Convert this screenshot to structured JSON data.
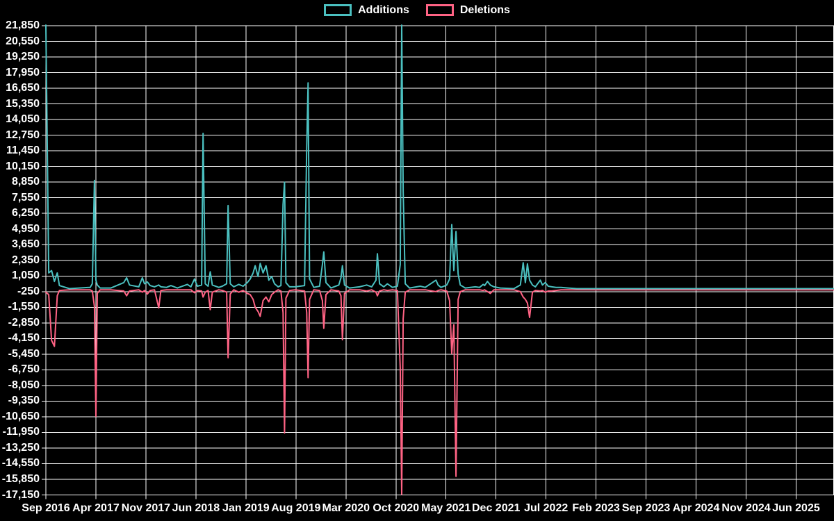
{
  "legend": {
    "items": [
      {
        "label": "Additions",
        "color": "#4bc0c0"
      },
      {
        "label": "Deletions",
        "color": "#ff6384"
      }
    ]
  },
  "colors": {
    "background": "#000000",
    "grid": "#ffffff",
    "text": "#ffffff",
    "additions": "#4bc0c0",
    "deletions": "#ff6384"
  },
  "chart_data": {
    "type": "line",
    "title": "",
    "legend_position": "top",
    "grid": true,
    "x_axis": {
      "unit": "months since Sep 2016",
      "span_months": 110.3,
      "tick_interval_months": 7,
      "tick_labels": [
        "Sep 2016",
        "Apr 2017",
        "Nov 2017",
        "Jun 2018",
        "Jan 2019",
        "Aug 2019",
        "Mar 2020",
        "Oct 2020",
        "May 2021",
        "Dec 2021",
        "Jul 2022",
        "Feb 2023",
        "Sep 2023",
        "Apr 2024",
        "Nov 2024",
        "Jun 2025"
      ]
    },
    "y_axis": {
      "min": -17150,
      "max": 21850,
      "tick_step": 1300,
      "tick_labels": [
        "21,850",
        "20,550",
        "19,250",
        "17,950",
        "16,650",
        "15,350",
        "14,050",
        "12,750",
        "11,450",
        "10,150",
        "8,850",
        "7,550",
        "6,250",
        "4,950",
        "3,650",
        "2,350",
        "1,050",
        "-250",
        "-1,550",
        "-2,850",
        "-4,150",
        "-5,450",
        "-6,750",
        "-8,050",
        "-9,350",
        "-10,650",
        "-11,950",
        "-13,250",
        "-14,550",
        "-15,850",
        "-17,150"
      ]
    },
    "series": [
      {
        "name": "Additions",
        "color": "#4bc0c0",
        "point_index": 1
      },
      {
        "name": "Deletions",
        "color": "#ff6384",
        "point_index": 2
      }
    ],
    "points_format": "[months_since_sep_2016, additions, deletions]",
    "points": [
      [
        0,
        21900,
        -300
      ],
      [
        0.4,
        1300,
        -500
      ],
      [
        0.8,
        1500,
        -4300
      ],
      [
        1.2,
        600,
        -4800
      ],
      [
        1.6,
        1300,
        -600
      ],
      [
        1.9,
        250,
        -150
      ],
      [
        3.3,
        0,
        -100
      ],
      [
        6.2,
        100,
        -100
      ],
      [
        6.5,
        400,
        -200
      ],
      [
        6.8,
        8990,
        -1500
      ],
      [
        7.0,
        700,
        -10600
      ],
      [
        7.2,
        300,
        -400
      ],
      [
        7.6,
        50,
        -100
      ],
      [
        9.1,
        50,
        -100
      ],
      [
        10.9,
        500,
        -200
      ],
      [
        11.3,
        900,
        -600
      ],
      [
        11.7,
        300,
        -200
      ],
      [
        13.0,
        150,
        -100
      ],
      [
        13.5,
        900,
        -300
      ],
      [
        13.8,
        400,
        -150
      ],
      [
        14.2,
        550,
        -450
      ],
      [
        14.6,
        250,
        -150
      ],
      [
        15.2,
        150,
        -100
      ],
      [
        15.8,
        300,
        -1600
      ],
      [
        16.1,
        150,
        -150
      ],
      [
        16.9,
        100,
        -100
      ],
      [
        17.5,
        250,
        -100
      ],
      [
        18.4,
        50,
        -100
      ],
      [
        19.8,
        350,
        -100
      ],
      [
        20.3,
        150,
        -100
      ],
      [
        20.8,
        800,
        -350
      ],
      [
        21.2,
        200,
        -150
      ],
      [
        21.8,
        300,
        -200
      ],
      [
        22.0,
        12900,
        -700
      ],
      [
        22.3,
        400,
        -300
      ],
      [
        22.7,
        200,
        -150
      ],
      [
        23.0,
        1400,
        -1750
      ],
      [
        23.3,
        300,
        -300
      ],
      [
        24.2,
        100,
        -100
      ],
      [
        24.7,
        200,
        -150
      ],
      [
        25.3,
        400,
        -300
      ],
      [
        25.5,
        6900,
        -5750
      ],
      [
        25.8,
        400,
        -450
      ],
      [
        26.3,
        150,
        -100
      ],
      [
        27.0,
        350,
        -300
      ],
      [
        27.6,
        200,
        -150
      ],
      [
        28.2,
        500,
        -400
      ],
      [
        28.6,
        800,
        -500
      ],
      [
        29.0,
        1300,
        -900
      ],
      [
        29.3,
        1900,
        -1550
      ],
      [
        29.7,
        1000,
        -1900
      ],
      [
        30.0,
        2100,
        -2300
      ],
      [
        30.4,
        1300,
        -1000
      ],
      [
        30.8,
        1900,
        -700
      ],
      [
        31.2,
        700,
        -1100
      ],
      [
        31.6,
        1000,
        -500
      ],
      [
        32.0,
        400,
        -300
      ],
      [
        32.5,
        150,
        -100
      ],
      [
        32.9,
        250,
        -200
      ],
      [
        33.2,
        7000,
        -2000
      ],
      [
        33.4,
        8850,
        -12000
      ],
      [
        33.6,
        500,
        -800
      ],
      [
        34.1,
        150,
        -150
      ],
      [
        34.9,
        150,
        -100
      ],
      [
        36.2,
        250,
        -200
      ],
      [
        36.5,
        11700,
        -2000
      ],
      [
        36.7,
        17100,
        -7400
      ],
      [
        36.9,
        800,
        -900
      ],
      [
        37.5,
        100,
        -100
      ],
      [
        38.3,
        200,
        -150
      ],
      [
        38.7,
        2000,
        -1000
      ],
      [
        38.9,
        3050,
        -3300
      ],
      [
        39.2,
        500,
        -500
      ],
      [
        39.9,
        50,
        -100
      ],
      [
        41.0,
        300,
        -200
      ],
      [
        41.3,
        900,
        -600
      ],
      [
        41.5,
        1900,
        -4250
      ],
      [
        41.8,
        300,
        -400
      ],
      [
        42.5,
        50,
        -100
      ],
      [
        43.9,
        150,
        -100
      ],
      [
        44.9,
        300,
        -200
      ],
      [
        45.6,
        150,
        -100
      ],
      [
        46.2,
        700,
        -300
      ],
      [
        46.4,
        2900,
        -600
      ],
      [
        46.7,
        400,
        -200
      ],
      [
        47.3,
        150,
        -100
      ],
      [
        47.8,
        400,
        -150
      ],
      [
        48.5,
        100,
        -100
      ],
      [
        49.2,
        200,
        -150
      ],
      [
        49.6,
        2000,
        -6600
      ],
      [
        49.8,
        21900,
        -17100
      ],
      [
        50.0,
        8100,
        -2500
      ],
      [
        50.3,
        400,
        -300
      ],
      [
        50.9,
        50,
        -100
      ],
      [
        52.4,
        200,
        -100
      ],
      [
        53.1,
        100,
        -100
      ],
      [
        54.6,
        700,
        -250
      ],
      [
        54.9,
        300,
        -150
      ],
      [
        55.3,
        100,
        -100
      ],
      [
        56.1,
        300,
        -200
      ],
      [
        56.5,
        800,
        -1000
      ],
      [
        56.8,
        5320,
        -5400
      ],
      [
        57.1,
        1500,
        -3000
      ],
      [
        57.4,
        4750,
        -15600
      ],
      [
        57.7,
        1200,
        -900
      ],
      [
        58.0,
        300,
        -250
      ],
      [
        58.7,
        50,
        -100
      ],
      [
        60.1,
        150,
        -100
      ],
      [
        60.7,
        100,
        -100
      ],
      [
        61.2,
        350,
        -150
      ],
      [
        61.4,
        250,
        -100
      ],
      [
        61.8,
        600,
        -250
      ],
      [
        62.2,
        300,
        -400
      ],
      [
        62.7,
        150,
        -100
      ],
      [
        63.6,
        50,
        -100
      ],
      [
        65.5,
        0,
        -100
      ],
      [
        66.4,
        300,
        -250
      ],
      [
        66.8,
        2150,
        -700
      ],
      [
        67.1,
        500,
        -900
      ],
      [
        67.4,
        2050,
        -1200
      ],
      [
        67.7,
        700,
        -2400
      ],
      [
        68.1,
        300,
        -300
      ],
      [
        68.5,
        150,
        -150
      ],
      [
        69.2,
        700,
        -200
      ],
      [
        69.5,
        300,
        -150
      ],
      [
        69.9,
        500,
        -300
      ],
      [
        70.3,
        200,
        -200
      ],
      [
        70.8,
        150,
        -200
      ],
      [
        71.4,
        100,
        -150
      ],
      [
        72.1,
        100,
        -100
      ],
      [
        73.1,
        50,
        -100
      ],
      [
        74.3,
        0,
        -100
      ],
      [
        110.3,
        0,
        -100
      ]
    ]
  }
}
